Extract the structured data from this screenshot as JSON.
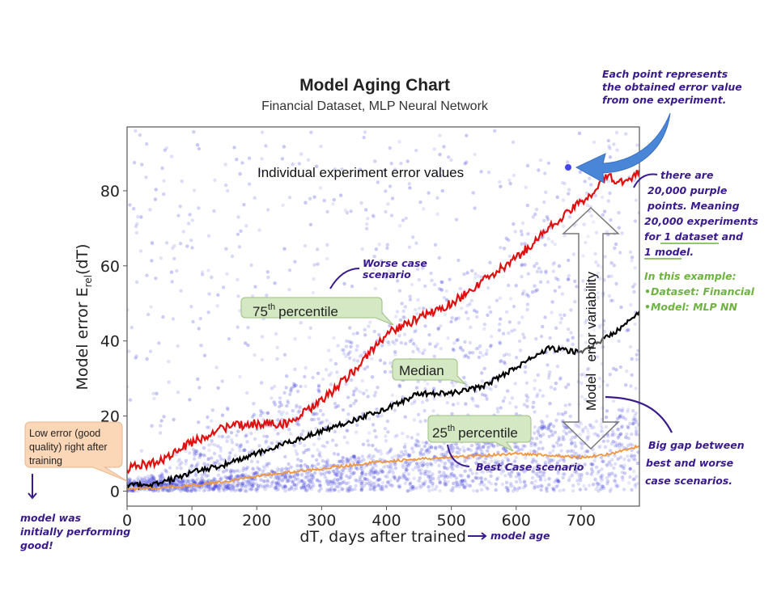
{
  "chart_data": {
    "type": "scatter",
    "title": "Model Aging Chart",
    "subtitle": "Financial Dataset, MLP Neural Network",
    "xlabel": "dT, days after trained",
    "ylabel_main": "Model error E",
    "ylabel_sub": "rel",
    "ylabel_tail": "(dT)",
    "xlim": [
      0,
      790
    ],
    "ylim": [
      -4,
      97
    ],
    "xticks": [
      "0",
      "100",
      "200",
      "300",
      "400",
      "500",
      "600",
      "700"
    ],
    "yticks": [
      "0",
      "20",
      "40",
      "60",
      "80"
    ],
    "grid": false,
    "scatter_color": "#3a3ad8",
    "scatter_label": "Individual experiment error values",
    "series": [
      {
        "name": "75th percentile",
        "color": "#e01010",
        "x": [
          0,
          50,
          100,
          150,
          200,
          250,
          300,
          350,
          400,
          450,
          500,
          550,
          600,
          650,
          700,
          720,
          740,
          760,
          790
        ],
        "y": [
          6,
          8,
          13,
          17,
          18,
          18,
          24,
          32,
          42,
          46,
          50,
          56,
          62,
          70,
          77,
          80,
          84,
          82,
          85
        ]
      },
      {
        "name": "Median",
        "color": "#000000",
        "x": [
          0,
          50,
          100,
          150,
          200,
          250,
          300,
          350,
          400,
          450,
          500,
          550,
          600,
          650,
          700,
          750,
          790
        ],
        "y": [
          1.5,
          2,
          5,
          7,
          10,
          13,
          16,
          19,
          22,
          26,
          26,
          28,
          33,
          38,
          37,
          42,
          48
        ]
      },
      {
        "name": "25th percentile",
        "color": "#f0963c",
        "x": [
          0,
          50,
          100,
          150,
          200,
          250,
          300,
          350,
          400,
          450,
          500,
          550,
          600,
          650,
          700,
          750,
          790
        ],
        "y": [
          0.5,
          0.8,
          1.5,
          2.5,
          4,
          5,
          6,
          7,
          8,
          8.5,
          9,
          9.5,
          10,
          9.5,
          9,
          10,
          12
        ]
      }
    ]
  },
  "annotations": {
    "callout_75": {
      "base": "75",
      "sup": "th",
      "text": "percentile"
    },
    "callout_median": "Median",
    "callout_25": {
      "base": "25",
      "sup": "th",
      "text": "percentile"
    },
    "callout_low": [
      "Low error (good",
      "quality) right after",
      "training"
    ],
    "variability": "Model   error variability",
    "worse_case": [
      "Worse case",
      "scenario"
    ],
    "best_case": "Best Case scenario",
    "model_age": "model age",
    "each_point": [
      "Each point represents",
      "the obtained error value",
      "from one experiment."
    ],
    "purple_points": [
      "there are",
      "20,000 purple",
      "points. Meaning",
      "20,000 experiments",
      "for 1 dataset and",
      "1 model."
    ],
    "example": [
      "In this example:",
      "•Dataset: Financial",
      "•Model: MLP NN"
    ],
    "big_gap": [
      "Big gap between",
      "best and worse",
      "case scenarios."
    ],
    "initially": [
      "model was",
      "initially performing",
      "good!"
    ]
  }
}
